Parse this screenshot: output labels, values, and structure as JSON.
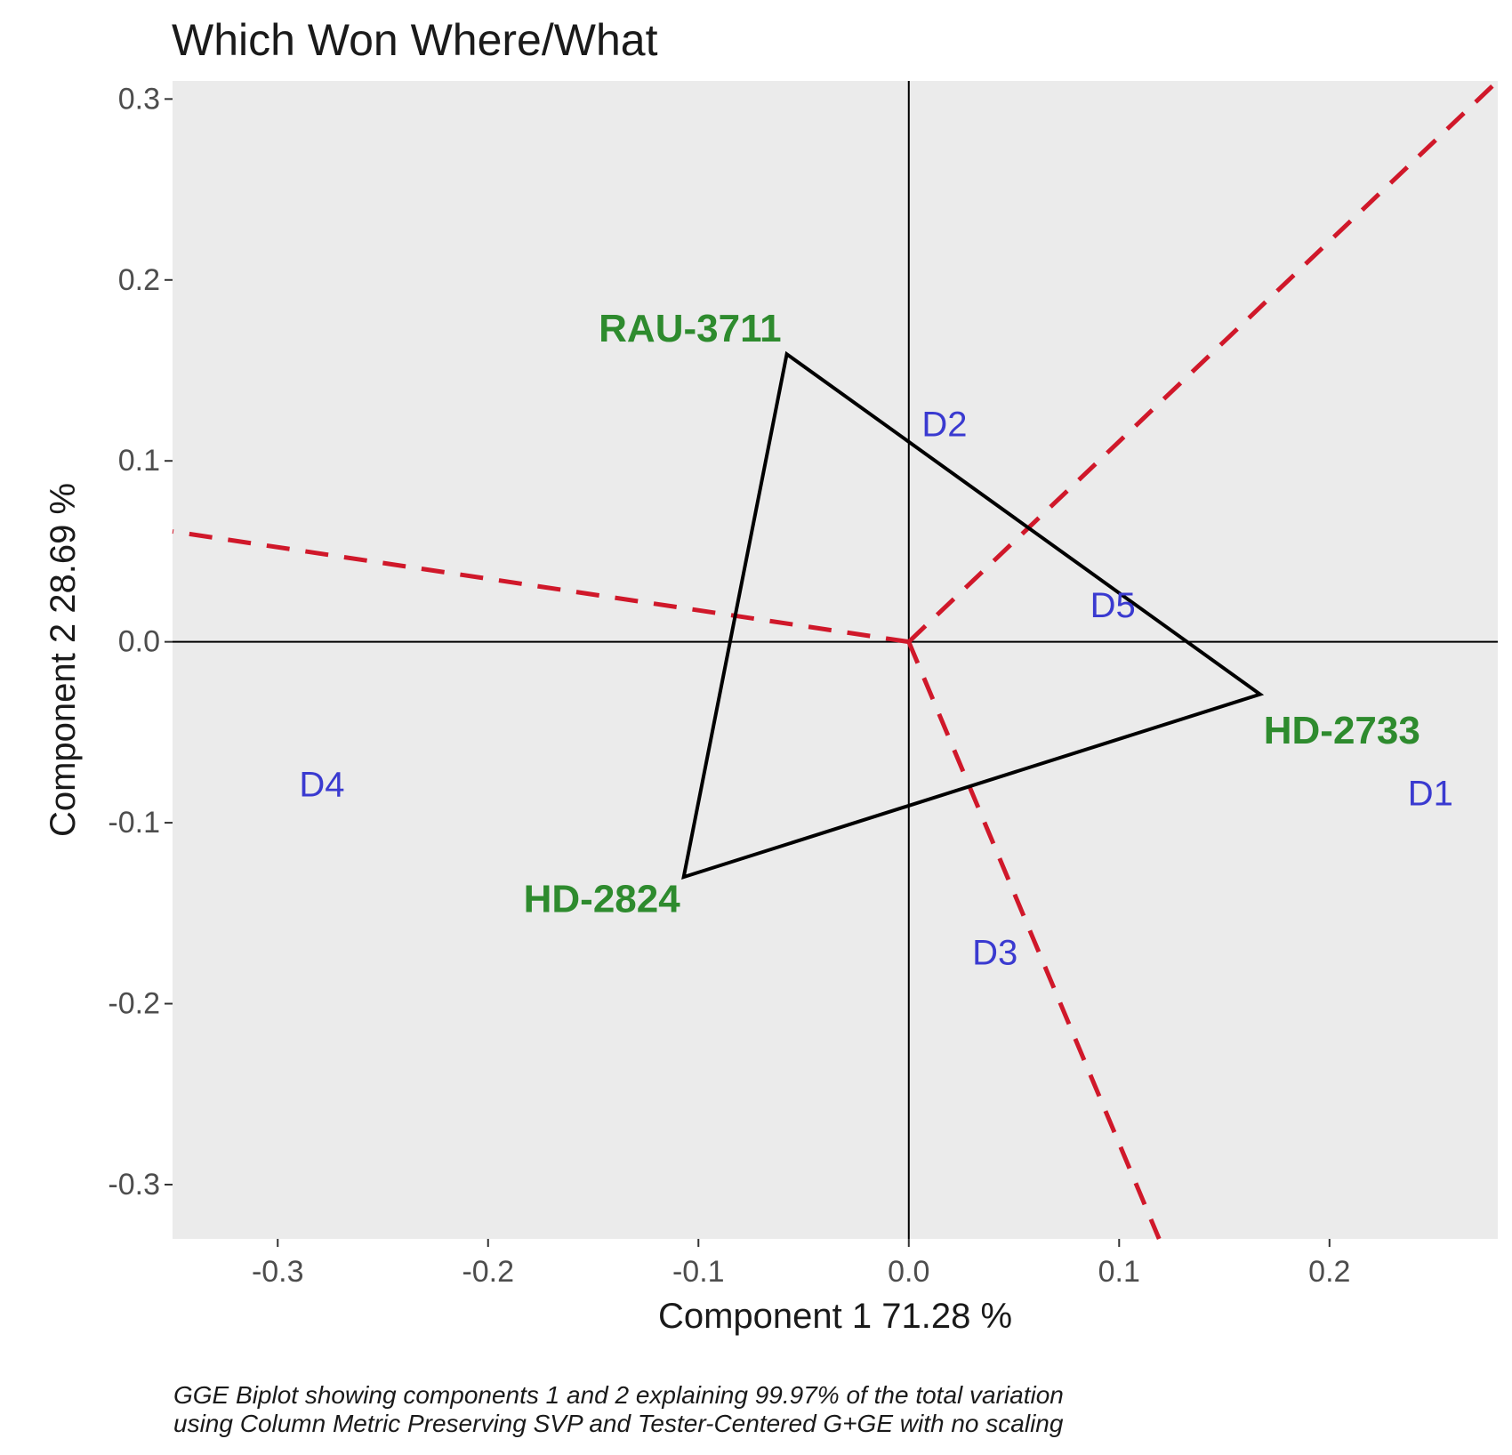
{
  "chart_data": {
    "type": "scatter",
    "title": "Which Won Where/What",
    "xlabel": "Component 1 71.28 %",
    "ylabel": "Component 2 28.69 %",
    "caption_lines": [
      "GGE Biplot showing components 1 and 2 explaining 99.97% of the total variation",
      "using Column Metric Preserving SVP and Tester-Centered G+GE with no scaling"
    ],
    "xlim": [
      -0.35,
      0.28
    ],
    "ylim": [
      -0.33,
      0.31
    ],
    "x_ticks": [
      -0.3,
      -0.2,
      -0.1,
      0.0,
      0.1,
      0.2
    ],
    "y_ticks": [
      -0.3,
      -0.2,
      -0.1,
      0.0,
      0.1,
      0.2,
      0.3
    ],
    "x_tick_labels": [
      "-0.3",
      "-0.2",
      "-0.1",
      "0.0",
      "0.1",
      "0.2"
    ],
    "y_tick_labels": [
      "-0.3",
      "-0.2",
      "-0.1",
      "0.0",
      "0.1",
      "0.2",
      "0.3"
    ],
    "grid": false,
    "background": "#ebebeb",
    "genotypes": [
      {
        "label": "RAU-3711",
        "x": -0.058,
        "y": 0.159
      },
      {
        "label": "HD-2733",
        "x": 0.167,
        "y": -0.029
      },
      {
        "label": "HD-2824",
        "x": -0.107,
        "y": -0.13
      }
    ],
    "environments": [
      {
        "label": "D1",
        "x": 0.248,
        "y": -0.084
      },
      {
        "label": "D2",
        "x": 0.017,
        "y": 0.12
      },
      {
        "label": "D3",
        "x": 0.041,
        "y": -0.172
      },
      {
        "label": "D4",
        "x": -0.279,
        "y": -0.079
      },
      {
        "label": "D5",
        "x": 0.097,
        "y": 0.02
      }
    ],
    "polygon_order": [
      "RAU-3711",
      "HD-2733",
      "HD-2824"
    ],
    "sector_line_ends": [
      {
        "x": 0.28,
        "y": 0.31
      },
      {
        "x": -0.35,
        "y": 0.061
      },
      {
        "x": 0.119,
        "y": -0.33
      }
    ],
    "colors": {
      "genotype": "#2e8b2e",
      "environment": "#3a3ad0",
      "polygon": "#000000",
      "sector_lines": "#d0182a",
      "reference_lines": "#000000"
    }
  }
}
